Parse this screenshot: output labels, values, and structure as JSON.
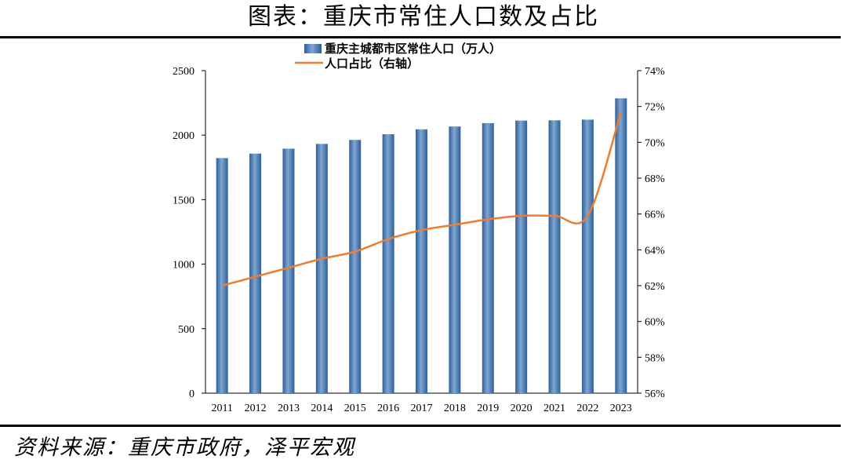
{
  "title": "图表：重庆市常住人口数及占比",
  "source": "资料来源：重庆市政府，泽平宏观",
  "chart_data": {
    "type": "bar",
    "categories": [
      "2011",
      "2012",
      "2013",
      "2014",
      "2015",
      "2016",
      "2017",
      "2018",
      "2019",
      "2020",
      "2021",
      "2022",
      "2023"
    ],
    "series": [
      {
        "name": "重庆主城都市区常住人口（万人）",
        "type": "bar",
        "axis": "left",
        "color": "#4a7fb8",
        "values": [
          1822,
          1857,
          1895,
          1932,
          1963,
          2007,
          2045,
          2067,
          2093,
          2113,
          2115,
          2120,
          2285
        ]
      },
      {
        "name": "人口占比（右轴）",
        "type": "line",
        "axis": "right",
        "color": "#ed7d31",
        "values": [
          62.0,
          62.5,
          63.0,
          63.5,
          63.9,
          64.6,
          65.1,
          65.4,
          65.7,
          65.9,
          65.9,
          65.9,
          71.7
        ]
      }
    ],
    "y_left": {
      "min": 0,
      "max": 2500,
      "step": 500,
      "ticks": [
        "0",
        "500",
        "1000",
        "1500",
        "2000",
        "2500"
      ]
    },
    "y_right": {
      "min": 56,
      "max": 74,
      "step": 2,
      "ticks": [
        "56%",
        "58%",
        "60%",
        "62%",
        "64%",
        "66%",
        "68%",
        "70%",
        "72%",
        "74%"
      ]
    },
    "grid": false,
    "legend_position": "top-center"
  }
}
